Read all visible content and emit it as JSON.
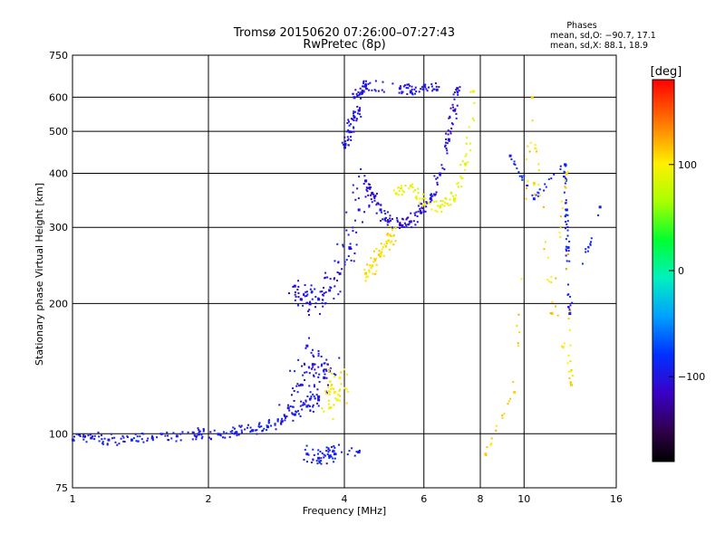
{
  "chart_data": {
    "type": "scatter",
    "title": "Tromsø 20150620 07:26:00–07:27:43",
    "subtitle": "RwPretec (8p)",
    "xlabel": "Frequency [MHz]",
    "ylabel": "Stationary phase Virtual Height [km]",
    "x_scale": "log2",
    "y_scale": "log",
    "xlim": [
      1,
      16
    ],
    "ylim": [
      75,
      750
    ],
    "x_ticks": [
      {
        "value": 1,
        "label": "1"
      },
      {
        "value": 2,
        "label": "2"
      },
      {
        "value": 4,
        "label": "4"
      },
      {
        "value": 6,
        "label": "6"
      },
      {
        "value": 8,
        "label": "8"
      },
      {
        "value": 10,
        "label": "10"
      },
      {
        "value": 16,
        "label": "16"
      }
    ],
    "y_ticks": [
      {
        "value": 75,
        "label": "75"
      },
      {
        "value": 100,
        "label": "100"
      },
      {
        "value": 200,
        "label": "200"
      },
      {
        "value": 300,
        "label": "300"
      },
      {
        "value": 400,
        "label": "400"
      },
      {
        "value": 500,
        "label": "500"
      },
      {
        "value": 600,
        "label": "600"
      },
      {
        "value": 750,
        "label": "750"
      }
    ],
    "grid": true,
    "phases_legend": {
      "title": "Phases",
      "line_o": "mean, sd,O: −90.7, 17.1",
      "line_x": "mean, sd,X:  88.1, 18.9"
    },
    "colorbar": {
      "label": "[deg]",
      "range": [
        -180,
        180
      ],
      "ticks": [
        {
          "value": 100,
          "label": "100"
        },
        {
          "value": 0,
          "label": "0"
        },
        {
          "value": -100,
          "label": "−100"
        }
      ]
    },
    "traces": [
      {
        "id": "e-layer",
        "x": [
          1.0,
          1.1,
          1.2,
          1.35,
          1.5,
          1.7,
          1.9,
          2.1,
          2.3,
          2.5,
          2.7,
          2.9,
          3.1,
          3.3,
          3.5
        ],
        "y": [
          97,
          98,
          97,
          97,
          98,
          99,
          100,
          100,
          101,
          102,
          104,
          107,
          111,
          116,
          122
        ],
        "phase": -95,
        "spread": 0.02
      },
      {
        "id": "es-blob",
        "x": [
          3.0,
          3.2,
          3.4,
          3.6,
          3.3,
          3.5,
          3.7
        ],
        "y": [
          115,
          130,
          145,
          135,
          160,
          120,
          140
        ],
        "phase": -100,
        "spread": 0.06
      },
      {
        "id": "es-blob-x",
        "x": [
          3.7,
          3.8,
          3.9,
          3.85
        ],
        "y": [
          115,
          125,
          135,
          120
        ],
        "phase": 100,
        "spread": 0.05
      },
      {
        "id": "f1-o",
        "x": [
          3.1,
          3.2,
          3.35,
          3.5,
          3.7,
          3.9,
          4.1,
          4.3,
          4.45
        ],
        "y": [
          220,
          205,
          200,
          205,
          215,
          235,
          270,
          330,
          385
        ],
        "phase": -100,
        "spread": 0.05
      },
      {
        "id": "f1-x",
        "x": [
          4.45,
          4.6,
          4.8,
          5.0,
          5.1
        ],
        "y": [
          235,
          245,
          260,
          280,
          300
        ],
        "phase": 105,
        "spread": 0.03
      },
      {
        "id": "f2-o",
        "x": [
          4.45,
          4.6,
          4.8,
          5.0,
          5.3,
          5.6,
          5.9,
          6.2,
          6.5,
          6.8,
          7.0,
          7.1
        ],
        "y": [
          385,
          360,
          330,
          310,
          305,
          310,
          325,
          350,
          400,
          480,
          560,
          630
        ],
        "phase": -105,
        "spread": 0.02
      },
      {
        "id": "f2-x",
        "x": [
          5.2,
          5.6,
          6.0,
          6.5,
          7.0,
          7.4,
          7.7
        ],
        "y": [
          360,
          375,
          340,
          335,
          350,
          420,
          620
        ],
        "phase": 90,
        "spread": 0.02
      },
      {
        "id": "spread-top",
        "x": [
          4.2,
          4.4,
          4.45,
          5.3,
          5.6,
          6.0,
          6.4
        ],
        "y": [
          600,
          620,
          640,
          630,
          620,
          640,
          625
        ],
        "phase": -100,
        "spread": 0.02
      },
      {
        "id": "oblique",
        "x": [
          4.0,
          4.1,
          4.2,
          4.3
        ],
        "y": [
          460,
          500,
          540,
          560
        ],
        "phase": -100,
        "spread": 0.02
      },
      {
        "id": "bottom-o",
        "x": [
          3.3,
          3.5,
          3.7,
          3.8,
          4.3
        ],
        "y": [
          90,
          88,
          89,
          90,
          91
        ],
        "phase": -95,
        "spread": 0.03
      },
      {
        "id": "sparse-high",
        "x": [
          9.3,
          10.5,
          12.3,
          12.4,
          12.5,
          12.6,
          14.7
        ],
        "y": [
          440,
          350,
          420,
          330,
          270,
          190,
          335
        ],
        "phase": -90,
        "spread": 0.01
      },
      {
        "id": "sparse-x",
        "x": [
          8.2,
          9.5,
          10.4,
          11.5,
          12.4,
          12.7,
          10.5
        ],
        "y": [
          90,
          125,
          600,
          190,
          400,
          130,
          380
        ],
        "phase": 110,
        "spread": 0.01
      }
    ]
  }
}
